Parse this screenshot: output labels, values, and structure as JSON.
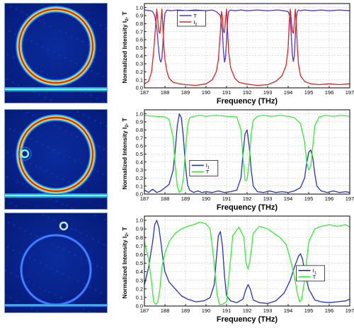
{
  "figure": {
    "panels": [
      {
        "id": "a",
        "simulation": {
          "label": "ring-resonator-field-map",
          "colormap": "jet",
          "ring_count": 1,
          "has_side_ring": false,
          "has_top_ring": false
        },
        "chart_data": {
          "type": "line",
          "xlabel": "Frequency (THz)",
          "ylabel": "Normalized Intensity I",
          "ylabel_sub": "2",
          "ylabel_tail": ", T",
          "xlim": [
            187,
            197
          ],
          "ylim": [
            0,
            1.05
          ],
          "xticks": [
            "187",
            "188",
            "189",
            "190",
            "191",
            "192",
            "193",
            "194",
            "195",
            "196",
            "197"
          ],
          "yticks": [
            "0.0",
            "0.1",
            "0.2",
            "0.3",
            "0.4",
            "0.5",
            "0.6",
            "0.7",
            "0.8",
            "0.9",
            "1.0"
          ],
          "grid": true,
          "legend_position": "top-left",
          "legend": [
            {
              "text": "T",
              "sub": "",
              "color": "#5533cc"
            },
            {
              "text": "I",
              "sub": "2",
              "color": "#dd2222"
            }
          ],
          "series": [
            {
              "color": "#5533cc",
              "x": [
                187.0,
                187.3,
                187.4,
                187.5,
                187.6,
                187.65,
                187.7,
                187.75,
                187.8,
                187.85,
                187.9,
                187.95,
                188.0,
                188.1,
                188.3,
                188.6,
                189.0,
                189.5,
                190.0,
                190.3,
                190.5,
                190.7,
                190.8,
                190.85,
                190.9,
                190.95,
                191.0,
                191.05,
                191.1,
                191.2,
                191.4,
                191.7,
                192.0,
                192.5,
                193.0,
                193.5,
                193.8,
                194.0,
                194.1,
                194.15,
                194.2,
                194.25,
                194.3,
                194.35,
                194.4,
                194.45,
                194.5,
                194.6,
                194.8,
                195.2,
                195.6,
                196.0,
                196.5,
                197.0
              ],
              "y": [
                0.97,
                0.96,
                0.95,
                0.9,
                0.75,
                0.6,
                0.45,
                0.35,
                0.32,
                0.37,
                0.55,
                0.8,
                0.93,
                0.97,
                0.96,
                0.97,
                0.96,
                0.97,
                0.96,
                0.97,
                0.95,
                0.9,
                0.7,
                0.45,
                0.32,
                0.38,
                0.6,
                0.85,
                0.95,
                0.97,
                0.96,
                0.97,
                0.96,
                0.97,
                0.96,
                0.97,
                0.96,
                0.95,
                0.88,
                0.65,
                0.42,
                0.33,
                0.4,
                0.65,
                0.88,
                0.95,
                0.97,
                0.96,
                0.97,
                0.96,
                0.97,
                0.96,
                0.97,
                0.96
              ]
            },
            {
              "color": "#dd2222",
              "x": [
                187.0,
                187.2,
                187.35,
                187.45,
                187.55,
                187.6,
                187.65,
                187.7,
                187.75,
                187.8,
                187.85,
                187.9,
                187.95,
                188.0,
                188.1,
                188.2,
                188.4,
                188.7,
                189.0,
                189.5,
                190.0,
                190.3,
                190.5,
                190.6,
                190.7,
                190.75,
                190.8,
                190.85,
                190.9,
                190.95,
                191.0,
                191.05,
                191.1,
                191.2,
                191.4,
                191.6,
                191.9,
                192.5,
                193.0,
                193.4,
                193.7,
                193.9,
                194.0,
                194.05,
                194.1,
                194.15,
                194.2,
                194.25,
                194.3,
                194.35,
                194.4,
                194.45,
                194.5,
                194.6,
                194.8,
                195.1,
                195.5,
                196.0,
                196.5,
                197.0
              ],
              "y": [
                0.05,
                0.08,
                0.2,
                0.45,
                0.8,
                0.98,
                0.85,
                0.7,
                0.68,
                0.8,
                0.98,
                0.75,
                0.5,
                0.35,
                0.2,
                0.12,
                0.07,
                0.05,
                0.04,
                0.03,
                0.05,
                0.1,
                0.2,
                0.35,
                0.7,
                0.95,
                0.88,
                0.7,
                0.69,
                0.85,
                0.98,
                0.7,
                0.45,
                0.25,
                0.12,
                0.07,
                0.05,
                0.03,
                0.04,
                0.08,
                0.15,
                0.28,
                0.5,
                0.8,
                0.98,
                0.85,
                0.7,
                0.68,
                0.8,
                0.98,
                0.78,
                0.5,
                0.3,
                0.15,
                0.08,
                0.05,
                0.04,
                0.05,
                0.04,
                0.05
              ]
            }
          ]
        }
      },
      {
        "id": "b",
        "simulation": {
          "label": "ring-resonator-with-side-ring-field-map",
          "colormap": "jet",
          "ring_count": 2,
          "has_side_ring": true,
          "has_top_ring": false
        },
        "chart_data": {
          "type": "line",
          "xlabel": "Frequency (THz)",
          "ylabel": "Normalized Intensity I",
          "ylabel_sub": "2",
          "ylabel_tail": ", T",
          "xlim": [
            187,
            197
          ],
          "ylim": [
            0,
            1.05
          ],
          "xticks": [
            "187",
            "188",
            "189",
            "190",
            "191",
            "192",
            "193",
            "194",
            "195",
            "196",
            "197"
          ],
          "yticks": [
            "0.0",
            "0.1",
            "0.2",
            "0.3",
            "0.4",
            "0.5",
            "0.6",
            "0.7",
            "0.8",
            "0.9",
            "1.0"
          ],
          "grid": true,
          "legend_position": "bottom-left",
          "legend": [
            {
              "text": "I",
              "sub": "1",
              "color": "#2233bb"
            },
            {
              "text": "T",
              "sub": "",
              "color": "#33ee33"
            }
          ],
          "series": [
            {
              "color": "#2233bb",
              "x": [
                187.0,
                187.2,
                187.4,
                187.6,
                187.8,
                188.0,
                188.2,
                188.4,
                188.5,
                188.6,
                188.7,
                188.8,
                188.9,
                189.0,
                189.1,
                189.2,
                189.4,
                189.6,
                189.8,
                190.0,
                190.3,
                190.6,
                190.9,
                191.2,
                191.5,
                191.7,
                191.8,
                191.9,
                192.0,
                192.1,
                192.2,
                192.3,
                192.5,
                192.8,
                193.1,
                193.4,
                193.7,
                194.0,
                194.3,
                194.6,
                194.8,
                194.9,
                195.0,
                195.1,
                195.2,
                195.3,
                195.4,
                195.6,
                195.9,
                196.2,
                196.5,
                196.8,
                197.0
              ],
              "y": [
                0.05,
                0.02,
                0.06,
                0.02,
                0.04,
                0.08,
                0.12,
                0.3,
                0.55,
                0.85,
                1.0,
                0.95,
                0.7,
                0.35,
                0.12,
                0.05,
                0.02,
                0.04,
                0.02,
                0.03,
                0.02,
                0.04,
                0.02,
                0.03,
                0.05,
                0.2,
                0.5,
                0.75,
                0.8,
                0.6,
                0.3,
                0.1,
                0.03,
                0.02,
                0.04,
                0.02,
                0.03,
                0.02,
                0.04,
                0.08,
                0.2,
                0.38,
                0.52,
                0.55,
                0.45,
                0.25,
                0.1,
                0.04,
                0.02,
                0.04,
                0.02,
                0.03,
                0.02
              ]
            },
            {
              "color": "#33ee33",
              "x": [
                187.0,
                187.5,
                188.0,
                188.2,
                188.4,
                188.5,
                188.6,
                188.7,
                188.8,
                188.9,
                189.0,
                189.1,
                189.2,
                189.4,
                189.7,
                190.0,
                190.5,
                191.0,
                191.5,
                191.7,
                191.8,
                191.9,
                192.0,
                192.1,
                192.2,
                192.3,
                192.5,
                192.8,
                193.2,
                193.6,
                194.0,
                194.3,
                194.6,
                194.8,
                194.9,
                195.0,
                195.1,
                195.2,
                195.3,
                195.5,
                195.8,
                196.2,
                196.6,
                197.0
              ],
              "y": [
                0.98,
                0.97,
                0.96,
                0.93,
                0.7,
                0.35,
                0.1,
                0.02,
                0.05,
                0.2,
                0.55,
                0.85,
                0.95,
                0.97,
                0.98,
                0.97,
                0.98,
                0.97,
                0.96,
                0.8,
                0.45,
                0.17,
                0.18,
                0.4,
                0.75,
                0.92,
                0.97,
                0.98,
                0.97,
                0.98,
                0.97,
                0.95,
                0.88,
                0.65,
                0.4,
                0.3,
                0.35,
                0.6,
                0.85,
                0.96,
                0.98,
                0.97,
                0.98,
                0.97
              ]
            }
          ]
        }
      },
      {
        "id": "c",
        "simulation": {
          "label": "ring-resonator-with-top-ring-field-map",
          "colormap": "jet",
          "ring_count": 2,
          "has_side_ring": false,
          "has_top_ring": true
        },
        "chart_data": {
          "type": "line",
          "xlabel": "Frequency (THz)",
          "ylabel": "Normalized Intensity I",
          "ylabel_sub": "2",
          "ylabel_tail": ", T",
          "xlim": [
            187,
            197
          ],
          "ylim": [
            0,
            1.05
          ],
          "xticks": [
            "187",
            "188",
            "189",
            "190",
            "191",
            "192",
            "193",
            "194",
            "195",
            "196",
            "197"
          ],
          "yticks": [
            "0.0",
            "0.1",
            "0.2",
            "0.3",
            "0.4",
            "0.5",
            "0.6",
            "0.7",
            "0.8",
            "0.9",
            "1.0"
          ],
          "grid": true,
          "legend_position": "bottom-right",
          "legend": [
            {
              "text": "I",
              "sub": "1",
              "color": "#2233bb"
            },
            {
              "text": "T",
              "sub": "",
              "color": "#33ee33"
            }
          ],
          "series": [
            {
              "color": "#2233bb",
              "x": [
                187.0,
                187.2,
                187.4,
                187.5,
                187.6,
                187.7,
                187.8,
                187.9,
                188.0,
                188.2,
                188.5,
                188.8,
                189.1,
                189.5,
                189.9,
                190.2,
                190.4,
                190.5,
                190.6,
                190.7,
                190.8,
                190.9,
                191.0,
                191.2,
                191.5,
                191.8,
                191.95,
                192.05,
                192.15,
                192.3,
                192.6,
                193.0,
                193.4,
                193.8,
                194.1,
                194.3,
                194.5,
                194.6,
                194.7,
                194.8,
                195.0,
                195.3,
                195.6,
                196.0,
                196.4,
                196.8,
                197.0
              ],
              "y": [
                0.25,
                0.45,
                0.75,
                0.95,
                1.0,
                0.92,
                0.75,
                0.55,
                0.4,
                0.28,
                0.2,
                0.12,
                0.08,
                0.05,
                0.06,
                0.1,
                0.25,
                0.55,
                0.82,
                0.87,
                0.7,
                0.35,
                0.12,
                0.06,
                0.04,
                0.08,
                0.2,
                0.25,
                0.2,
                0.07,
                0.04,
                0.03,
                0.06,
                0.15,
                0.3,
                0.45,
                0.58,
                0.61,
                0.55,
                0.4,
                0.2,
                0.07,
                0.05,
                0.04,
                0.05,
                0.06,
                0.08
              ]
            },
            {
              "color": "#33ee33",
              "x": [
                187.0,
                187.2,
                187.35,
                187.45,
                187.55,
                187.65,
                187.75,
                187.85,
                188.0,
                188.2,
                188.5,
                188.8,
                189.1,
                189.4,
                189.7,
                190.0,
                190.2,
                190.35,
                190.45,
                190.55,
                190.65,
                190.8,
                191.0,
                191.3,
                191.6,
                191.85,
                191.95,
                192.05,
                192.15,
                192.3,
                192.6,
                193.0,
                193.3,
                193.6,
                193.9,
                194.1,
                194.3,
                194.45,
                194.55,
                194.65,
                194.8,
                195.0,
                195.3,
                195.6,
                196.0,
                196.4,
                196.8,
                197.0
              ],
              "y": [
                0.75,
                0.55,
                0.28,
                0.05,
                0.02,
                0.05,
                0.2,
                0.45,
                0.62,
                0.75,
                0.85,
                0.9,
                0.93,
                0.95,
                0.98,
                0.96,
                0.9,
                0.6,
                0.35,
                0.12,
                0.02,
                0.02,
                0.05,
                0.82,
                0.92,
                0.8,
                0.5,
                0.43,
                0.55,
                0.85,
                0.93,
                0.9,
                0.85,
                0.8,
                0.72,
                0.55,
                0.35,
                0.15,
                0.05,
                0.07,
                0.3,
                0.75,
                0.9,
                0.93,
                0.95,
                0.93,
                0.95,
                0.92
              ]
            }
          ]
        }
      }
    ]
  }
}
